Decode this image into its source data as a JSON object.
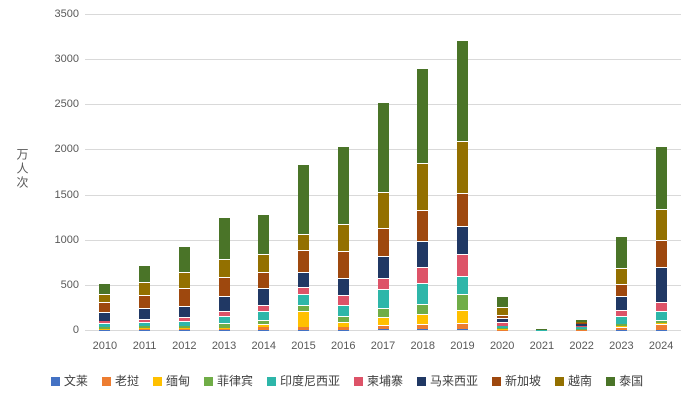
{
  "chart_data": {
    "type": "bar",
    "stacked": true,
    "title": "",
    "ylabel": "万人次",
    "xlabel": "",
    "ylim": [
      0,
      3500
    ],
    "ytick_step": 500,
    "grid": true,
    "legend_position": "bottom",
    "categories": [
      "2010",
      "2011",
      "2012",
      "2013",
      "2014",
      "2015",
      "2016",
      "2017",
      "2018",
      "2019",
      "2020",
      "2021",
      "2022",
      "2023",
      "2024"
    ],
    "series": [
      {
        "name": "文莱",
        "color": "#4472C4",
        "values": [
          2,
          3,
          4,
          3,
          4,
          4,
          5,
          8,
          6,
          8,
          1,
          0,
          1,
          2,
          4
        ]
      },
      {
        "name": "老挝",
        "color": "#ED7D31",
        "values": [
          5,
          7,
          10,
          12,
          27,
          25,
          26,
          48,
          65,
          70,
          4,
          1,
          4,
          35,
          65
        ]
      },
      {
        "name": "缅甸",
        "color": "#FFC000",
        "values": [
          6,
          7,
          10,
          12,
          32,
          185,
          55,
          90,
          110,
          140,
          10,
          1,
          3,
          10,
          8
        ]
      },
      {
        "name": "菲律宾",
        "color": "#70AD47",
        "values": [
          19,
          24,
          25,
          45,
          45,
          60,
          66,
          100,
          105,
          185,
          8,
          1,
          6,
          22,
          33
        ]
      },
      {
        "name": "印度尼西亚",
        "color": "#2EB6A9",
        "values": [
          45,
          52,
          55,
          81,
          100,
          122,
          126,
          210,
          240,
          190,
          22,
          2,
          25,
          89,
          105
        ]
      },
      {
        "name": "柬埔寨",
        "color": "#DD5368",
        "values": [
          22,
          29,
          44,
          52,
          70,
          75,
          111,
          115,
          170,
          250,
          40,
          1,
          10,
          66,
          95
        ]
      },
      {
        "name": "马来西亚",
        "color": "#203864",
        "values": [
          104,
          127,
          120,
          170,
          185,
          169,
          185,
          245,
          295,
          305,
          50,
          2,
          18,
          156,
          390
        ]
      },
      {
        "name": "新加坡",
        "color": "#9E480E",
        "values": [
          111,
          135,
          192,
          215,
          184,
          245,
          296,
          310,
          340,
          370,
          30,
          2,
          12,
          133,
          300
        ]
      },
      {
        "name": "越南",
        "color": "#937000",
        "values": [
          89,
          147,
          178,
          193,
          200,
          177,
          304,
          400,
          515,
          575,
          95,
          1,
          15,
          178,
          340
        ]
      },
      {
        "name": "泰国",
        "color": "#4A7428",
        "values": [
          115,
          190,
          290,
          466,
          437,
          778,
          861,
          1000,
          1055,
          1115,
          115,
          3,
          22,
          350,
          700
        ]
      }
    ],
    "totals": [
      518,
      721,
      928,
      1249,
      1284,
      1840,
      2035,
      2526,
      2901,
      3208,
      375,
      14,
      116,
      1041,
      2040
    ],
    "colors": {
      "background": "#FFFFFF",
      "gridline": "#D9D9D9",
      "axis_line": "#D9D9D9",
      "tick_text": "#595959",
      "axis_title_text": "#595959",
      "legend_text": "#404040",
      "segment_separator": "#FFFFFF"
    }
  }
}
